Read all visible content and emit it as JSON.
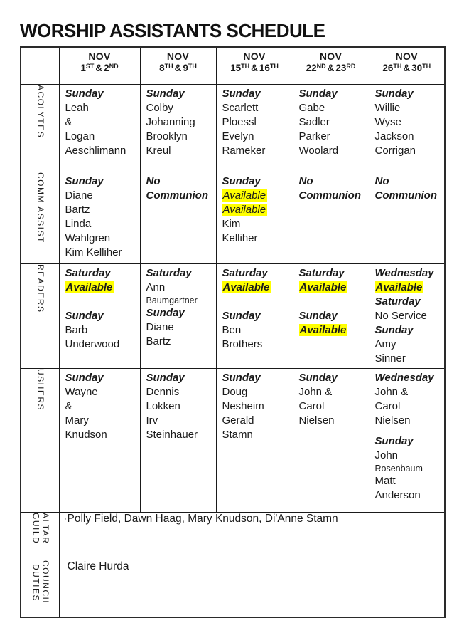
{
  "title": "WORSHIP ASSISTANTS SCHEDULE",
  "stray_mark": "'",
  "colors": {
    "highlight": "#ffff00",
    "text": "#1a1a1a",
    "border": "#1a1a1a",
    "background": "#ffffff"
  },
  "columns": [
    {
      "month": "NOV",
      "d1": "1",
      "s1": "ST",
      "amp": "&",
      "d2": "2",
      "s2": "ND"
    },
    {
      "month": "NOV",
      "d1": "8",
      "s1": "TH",
      "amp": "&",
      "d2": "9",
      "s2": "TH"
    },
    {
      "month": "NOV",
      "d1": "15",
      "s1": "TH",
      "amp": "&",
      "d2": "16",
      "s2": "TH"
    },
    {
      "month": "NOV",
      "d1": "22",
      "s1": "ND",
      "amp": "&",
      "d2": "23",
      "s2": "RD"
    },
    {
      "month": "NOV",
      "d1": "26",
      "s1": "TH",
      "amp": "&",
      "d2": "30",
      "s2": "TH"
    }
  ],
  "rows": [
    {
      "label": "ACOLYTES",
      "cells": [
        {
          "lines": [
            {
              "t": "Sunday",
              "s": "bi"
            },
            {
              "t": "Leah"
            },
            {
              "t": "&"
            },
            {
              "t": "Logan"
            },
            {
              "t": "Aeschlimann"
            }
          ]
        },
        {
          "lines": [
            {
              "t": "Sunday",
              "s": "bi"
            },
            {
              "t": "Colby"
            },
            {
              "t": "Johanning"
            },
            {
              "t": "Brooklyn"
            },
            {
              "t": "Kreul"
            }
          ]
        },
        {
          "lines": [
            {
              "t": "Sunday",
              "s": "bi"
            },
            {
              "t": "Scarlett"
            },
            {
              "t": "Ploessl"
            },
            {
              "t": "Evelyn"
            },
            {
              "t": "Rameker"
            }
          ]
        },
        {
          "lines": [
            {
              "t": "Sunday",
              "s": "bi"
            },
            {
              "t": "Gabe"
            },
            {
              "t": "Sadler"
            },
            {
              "t": "Parker"
            },
            {
              "t": "Woolard"
            }
          ]
        },
        {
          "lines": [
            {
              "t": "Sunday",
              "s": "bi"
            },
            {
              "t": "Willie"
            },
            {
              "t": "Wyse"
            },
            {
              "t": "Jackson"
            },
            {
              "t": "Corrigan"
            }
          ]
        }
      ]
    },
    {
      "label": "COMM ASSIST",
      "cells": [
        {
          "lines": [
            {
              "t": "Sunday",
              "s": "bi"
            },
            {
              "t": "Diane"
            },
            {
              "t": "Bartz"
            },
            {
              "t": "Linda"
            },
            {
              "t": "Wahlgren"
            },
            {
              "t": "Kim Kelliher"
            }
          ]
        },
        {
          "lines": [
            {
              "t": "No",
              "s": "bi"
            },
            {
              "t": "Communion",
              "s": "bi"
            }
          ]
        },
        {
          "lines": [
            {
              "t": "Sunday",
              "s": "bi"
            },
            {
              "t": "Available",
              "s": "hli"
            },
            {
              "t": "Available",
              "s": "hli"
            },
            {
              "t": "Kim"
            },
            {
              "t": "Kelliher"
            }
          ]
        },
        {
          "lines": [
            {
              "t": "No",
              "s": "bi"
            },
            {
              "t": "Communion",
              "s": "bi"
            }
          ]
        },
        {
          "lines": [
            {
              "t": "No",
              "s": "bi"
            },
            {
              "t": "Communion",
              "s": "bi"
            }
          ]
        }
      ]
    },
    {
      "label": "READERS",
      "cells": [
        {
          "lines": [
            {
              "t": "Saturday",
              "s": "bi"
            },
            {
              "t": "Available",
              "s": "hlbi"
            },
            {
              "t": "",
              "s": "sp"
            },
            {
              "t": "Sunday",
              "s": "bi"
            },
            {
              "t": "Barb"
            },
            {
              "t": "Underwood"
            }
          ]
        },
        {
          "lines": [
            {
              "t": "Saturday",
              "s": "bi"
            },
            {
              "t": "Ann"
            },
            {
              "t": "Baumgartner",
              "s": "sm"
            },
            {
              "t": "Sunday",
              "s": "bi"
            },
            {
              "t": "Diane"
            },
            {
              "t": "Bartz"
            }
          ]
        },
        {
          "lines": [
            {
              "t": "Saturday",
              "s": "bi"
            },
            {
              "t": "Available",
              "s": "hlbi"
            },
            {
              "t": "",
              "s": "sp"
            },
            {
              "t": "Sunday",
              "s": "bi"
            },
            {
              "t": "Ben"
            },
            {
              "t": "Brothers"
            }
          ]
        },
        {
          "lines": [
            {
              "t": "Saturday",
              "s": "bi"
            },
            {
              "t": "Available",
              "s": "hlbi"
            },
            {
              "t": "",
              "s": "sp"
            },
            {
              "t": "Sunday",
              "s": "bi"
            },
            {
              "t": "Available",
              "s": "hlbi"
            }
          ]
        },
        {
          "lines": [
            {
              "t": "Wednesday",
              "s": "bi"
            },
            {
              "t": "Available",
              "s": "hlbi"
            },
            {
              "t": "Saturday",
              "s": "bi"
            },
            {
              "t": "No Service"
            },
            {
              "t": "Sunday",
              "s": "bi"
            },
            {
              "t": "Amy"
            },
            {
              "t": "Sinner"
            }
          ]
        }
      ]
    },
    {
      "label": "USHERS",
      "cells": [
        {
          "lines": [
            {
              "t": "Sunday",
              "s": "bi"
            },
            {
              "t": "Wayne"
            },
            {
              "t": "&"
            },
            {
              "t": "Mary"
            },
            {
              "t": "Knudson"
            }
          ]
        },
        {
          "lines": [
            {
              "t": "Sunday",
              "s": "bi"
            },
            {
              "t": "Dennis"
            },
            {
              "t": "Lokken"
            },
            {
              "t": "Irv"
            },
            {
              "t": "Steinhauer"
            }
          ]
        },
        {
          "lines": [
            {
              "t": "Sunday",
              "s": "bi"
            },
            {
              "t": "Doug"
            },
            {
              "t": "Nesheim"
            },
            {
              "t": "Gerald"
            },
            {
              "t": "Stamn"
            }
          ]
        },
        {
          "lines": [
            {
              "t": "Sunday",
              "s": "bi"
            },
            {
              "t": "John &"
            },
            {
              "t": "Carol"
            },
            {
              "t": "Nielsen"
            }
          ]
        },
        {
          "lines": [
            {
              "t": "Wednesday",
              "s": "bi"
            },
            {
              "t": "John &"
            },
            {
              "t": "Carol"
            },
            {
              "t": "Nielsen"
            },
            {
              "t": "",
              "s": "gap"
            },
            {
              "t": "Sunday",
              "s": "bi"
            },
            {
              "t": "John"
            },
            {
              "t": "Rosenbaum",
              "s": "sm"
            },
            {
              "t": "Matt"
            },
            {
              "t": "Anderson"
            }
          ]
        }
      ]
    }
  ],
  "full_rows": [
    {
      "label_lines": [
        "ALTAR",
        "GUILD"
      ],
      "text": "Polly Field, Dawn Haag, Mary Knudson, Di'Anne Stamn"
    },
    {
      "label_lines": [
        "COUNCIL",
        "DUTIES"
      ],
      "text": "Claire Hurda"
    }
  ]
}
